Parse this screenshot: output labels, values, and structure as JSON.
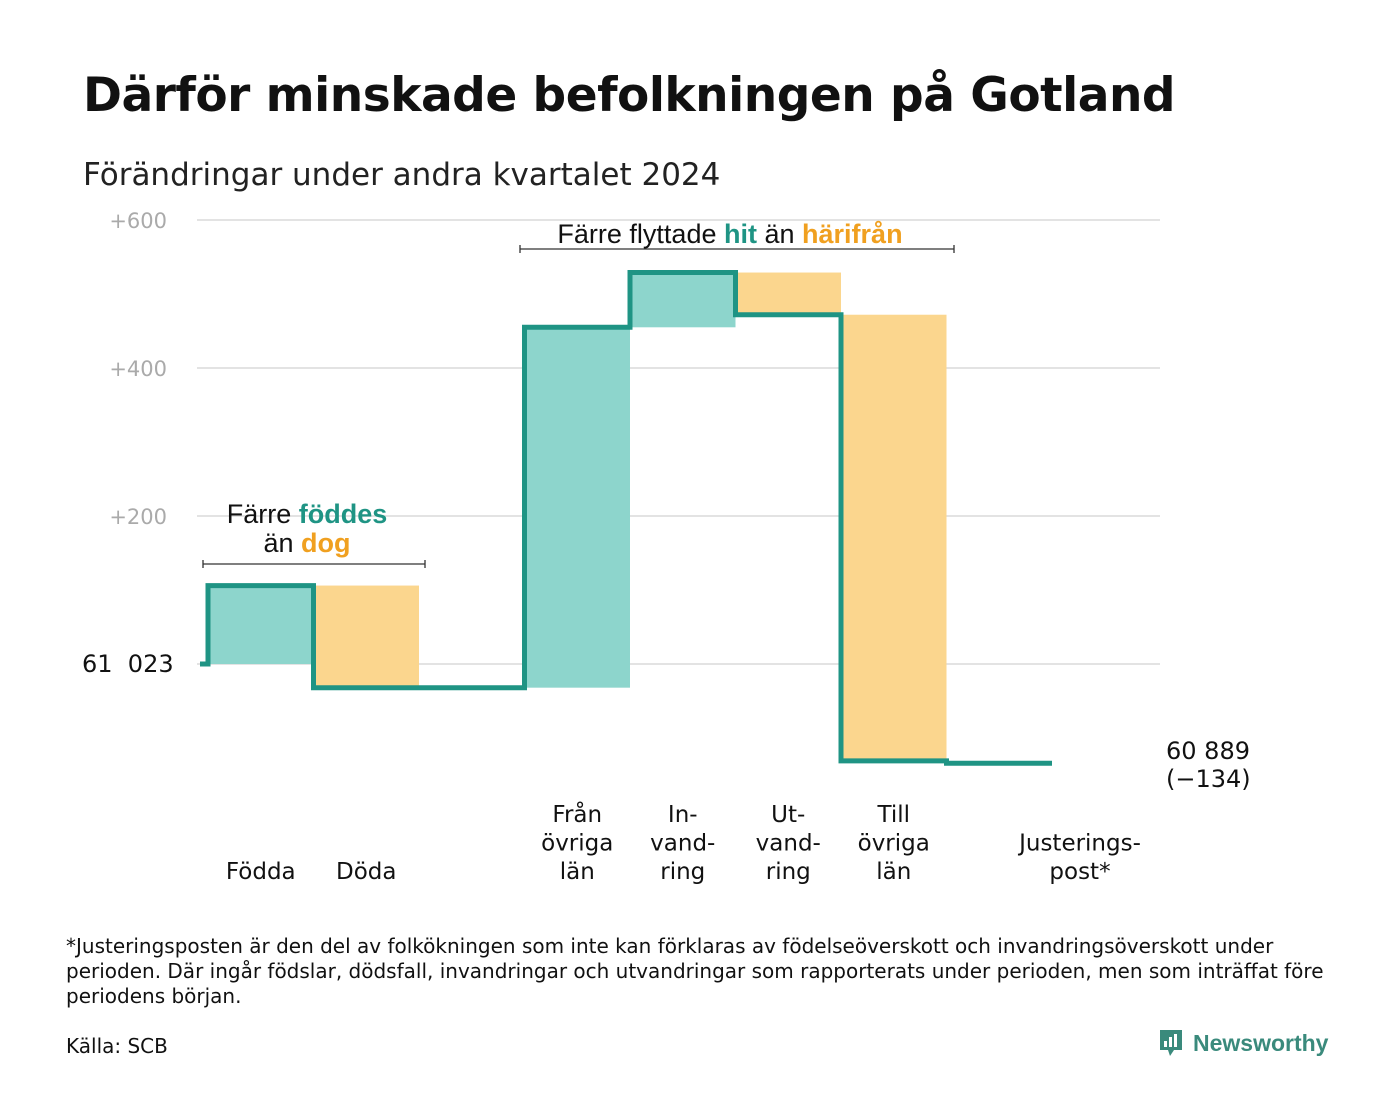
{
  "title": "Därför minskade befolkningen på Gotland",
  "subtitle": "Förändringar under andra kvartalet 2024",
  "chart_data": {
    "type": "waterfall",
    "start_value": 61023,
    "start_label": "61  023",
    "end_value": 60889,
    "end_label_line1": "60 889",
    "end_label_line2": "(−134)",
    "y_axis": {
      "min": -134,
      "max": 600,
      "ticks": [
        {
          "value": 200,
          "label": "+200"
        },
        {
          "value": 400,
          "label": "+400"
        },
        {
          "value": 600,
          "label": "+600"
        }
      ],
      "grid": true
    },
    "steps": [
      {
        "label_lines": [
          "Födda"
        ],
        "change": 106,
        "kind": "inflow"
      },
      {
        "label_lines": [
          "Döda"
        ],
        "change": -138,
        "kind": "outflow"
      },
      {
        "label_lines": [],
        "change": 0,
        "kind": "gap"
      },
      {
        "label_lines": [
          "Från",
          "övriga",
          "län"
        ],
        "change": 487,
        "kind": "inflow"
      },
      {
        "label_lines": [
          "In-",
          "vand-",
          "ring"
        ],
        "change": 74,
        "kind": "inflow"
      },
      {
        "label_lines": [
          "Ut-",
          "vand-",
          "ring"
        ],
        "change": -57,
        "kind": "outflow"
      },
      {
        "label_lines": [
          "Till",
          "övriga",
          "län"
        ],
        "change": -603,
        "kind": "outflow"
      },
      {
        "label_lines": [
          "Justerings-",
          "post*"
        ],
        "change": -3,
        "kind": "adjustment"
      }
    ],
    "annotations": [
      {
        "lines": [
          [
            {
              "text": "Färre ",
              "style": "plain"
            },
            {
              "text": "föddes",
              "style": "teal"
            }
          ],
          [
            {
              "text": "än ",
              "style": "plain"
            },
            {
              "text": "dog",
              "style": "orange"
            }
          ]
        ]
      },
      {
        "lines": [
          [
            {
              "text": "Färre flyttade ",
              "style": "plain"
            },
            {
              "text": "hit",
              "style": "teal"
            },
            {
              "text": " än ",
              "style": "plain"
            },
            {
              "text": "härifrån",
              "style": "orange"
            }
          ]
        ]
      }
    ],
    "colors": {
      "inflow": "#8dd5cc",
      "outflow": "#fbd68e",
      "line": "#1f9484",
      "grid": "#e3e3e3"
    }
  },
  "footnote": "*Justeringsposten är den del av folkökningen som inte kan förklaras av födelseöverskott och invandringsöverskott under perioden. Där ingår födslar, dödsfall, invandringar och utvandringar som rapporterats under perioden, men som inträffat före periodens början.",
  "source": "Källa: SCB",
  "logo": {
    "text": "Newsworthy",
    "icon": "newsworthy-logo-icon"
  }
}
